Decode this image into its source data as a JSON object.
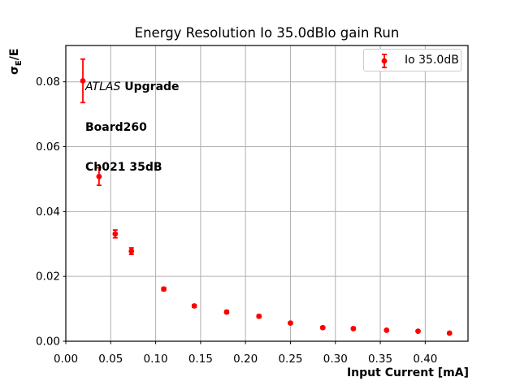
{
  "title": "Energy Resolution Io 35.0dBlo gain Run",
  "annotation": {
    "line1_italic": "ATLAS",
    "line1_bold": " Upgrade",
    "line2": "Board260",
    "line3": "Ch021 35dB"
  },
  "ylabel_parts": {
    "sigma": "σ",
    "sub": "E",
    "rest": "/E"
  },
  "legend": {
    "label": "Io 35.0dB",
    "position": "upper right"
  },
  "colors": {
    "series": "#ff0000",
    "grid": "#b0b0b0",
    "spine": "#000000",
    "legend_border": "#cccccc",
    "text": "#000000",
    "background": "#ffffff"
  },
  "chart_data": {
    "type": "scatter",
    "title": "Energy Resolution Io 35.0dBlo gain Run",
    "xlabel": "Input Current [mA]",
    "ylabel": "σ_E/E",
    "xlim": [
      0,
      0.4476
    ],
    "ylim": [
      0,
      0.0912
    ],
    "xticks": [
      0.0,
      0.05,
      0.1,
      0.15,
      0.2,
      0.25,
      0.3,
      0.35,
      0.4
    ],
    "xtick_labels": [
      "0.00",
      "0.05",
      "0.10",
      "0.15",
      "0.20",
      "0.25",
      "0.30",
      "0.35",
      "0.40"
    ],
    "yticks": [
      0.0,
      0.02,
      0.04,
      0.06,
      0.08
    ],
    "ytick_labels": [
      "0.00",
      "0.02",
      "0.04",
      "0.06",
      "0.08"
    ],
    "grid": true,
    "legend_position": "upper right",
    "series": [
      {
        "name": "Io 35.0dB",
        "color": "#ff0000",
        "marker": "circle-with-errorbar",
        "x": [
          0.019,
          0.037,
          0.055,
          0.073,
          0.109,
          0.143,
          0.179,
          0.215,
          0.25,
          0.286,
          0.32,
          0.357,
          0.392,
          0.427
        ],
        "y": [
          0.0803,
          0.0508,
          0.0331,
          0.0278,
          0.0161,
          0.0109,
          0.009,
          0.0077,
          0.0056,
          0.0042,
          0.0039,
          0.0034,
          0.0031,
          0.0025
        ],
        "yerr": [
          0.0067,
          0.0027,
          0.0012,
          0.001,
          0.0005,
          0.0004,
          0.0004,
          0.0004,
          0.0003,
          0.0003,
          0.0003,
          0.0002,
          0.0002,
          0.0002
        ]
      }
    ]
  }
}
